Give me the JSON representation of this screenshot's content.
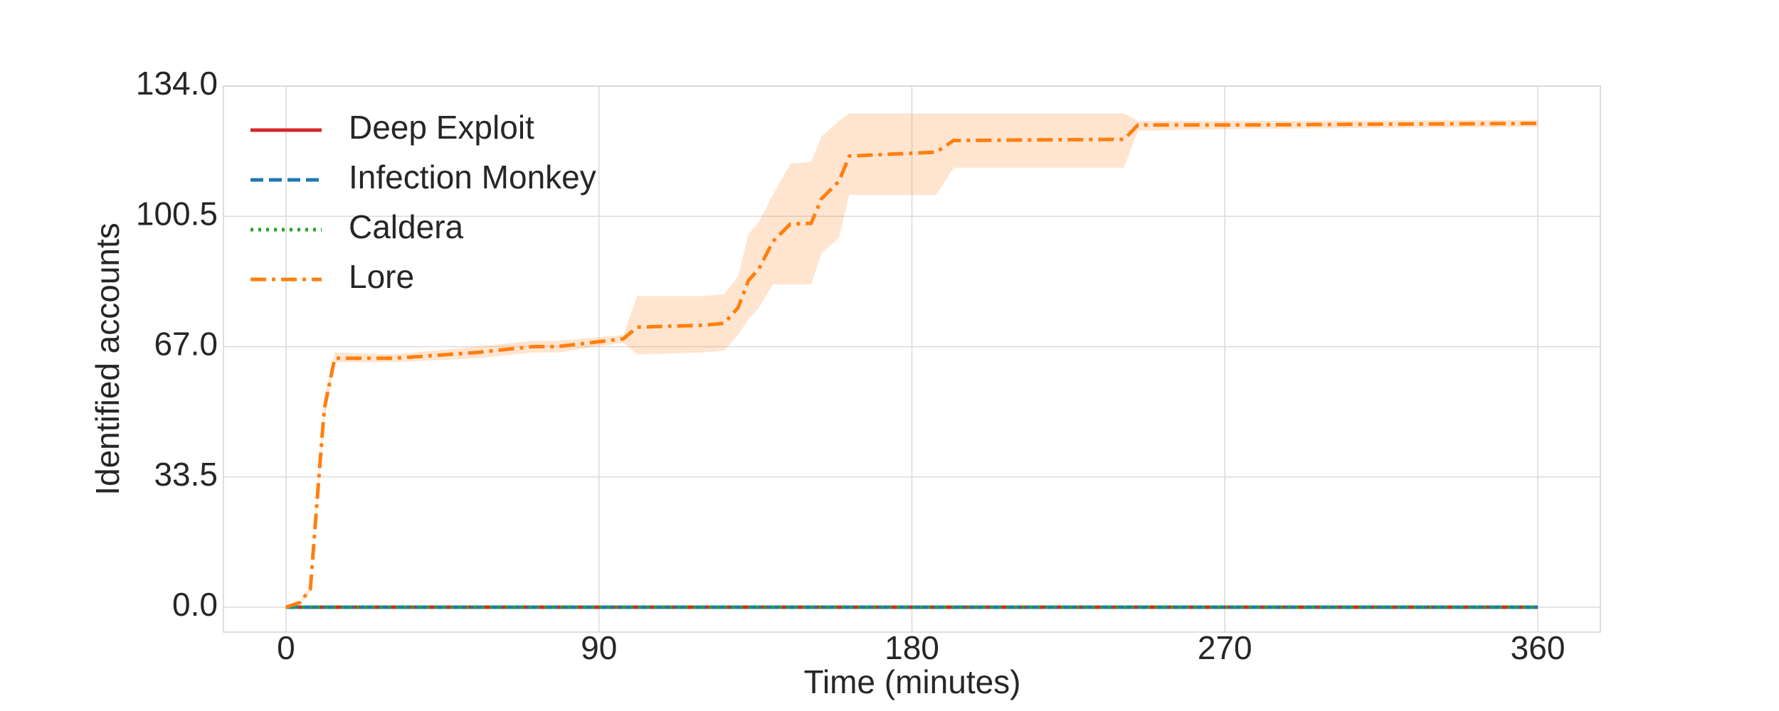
{
  "chart_data": {
    "type": "line",
    "xlabel": "Time (minutes)",
    "ylabel": "Identified accounts",
    "xlim": [
      -18,
      378
    ],
    "ylim": [
      -6.4,
      134
    ],
    "xticks": [
      0,
      90,
      180,
      270,
      360
    ],
    "yticks": [
      {
        "value": 0,
        "label": "0.0"
      },
      33.5,
      {
        "value": 67,
        "label": "67.0"
      },
      100.5,
      {
        "value": 134,
        "label": "134.0"
      }
    ],
    "grid": true,
    "legend": "upper left",
    "series": [
      {
        "name": "Deep Exploit",
        "color": "#d62728",
        "linestyle": "solid",
        "x": [
          0,
          360
        ],
        "values": [
          0,
          0
        ]
      },
      {
        "name": "Infection Monkey",
        "color": "#1f77b4",
        "linestyle": "dashed",
        "x": [
          0,
          360
        ],
        "values": [
          0,
          0
        ]
      },
      {
        "name": "Caldera",
        "color": "#2ca02c",
        "linestyle": "dotted",
        "x": [
          0,
          360
        ],
        "values": [
          0,
          0
        ]
      },
      {
        "name": "Lore",
        "color": "#ff7f0e",
        "linestyle": "dashdot",
        "x": [
          0,
          4,
          7,
          9.5,
          11,
          14,
          31,
          55,
          71,
          78,
          97,
          101,
          120,
          126,
          130,
          133,
          136,
          140,
          145,
          151,
          154,
          159,
          162,
          187,
          192,
          241,
          245,
          277,
          360
        ],
        "values": [
          0,
          1.2,
          4.7,
          34,
          51,
          64,
          64,
          65.5,
          67,
          67,
          69,
          72,
          72.5,
          73,
          77,
          84,
          87,
          94,
          98.5,
          98.7,
          105,
          109.5,
          116,
          117,
          120,
          120.3,
          124,
          124,
          124.4
        ],
        "lower": [
          0,
          0.8,
          4,
          32,
          48,
          63,
          63,
          64,
          65.5,
          65.5,
          68,
          65,
          65.5,
          66,
          70,
          74,
          77,
          83,
          83,
          83,
          91,
          95,
          106,
          106,
          113,
          113,
          122.5,
          123,
          123.5
        ],
        "upper": [
          0,
          1.6,
          5.4,
          36,
          54,
          65.5,
          65,
          67,
          68.5,
          68.5,
          70,
          80,
          80,
          80.5,
          85,
          96,
          99,
          106,
          114,
          114.5,
          121,
          125,
          127,
          127,
          127,
          127,
          125,
          125,
          125.3
        ]
      }
    ]
  }
}
